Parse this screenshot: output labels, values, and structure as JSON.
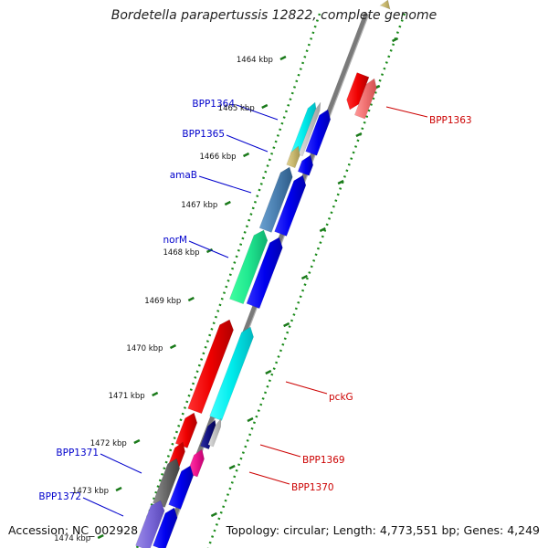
{
  "title": "Bordetella parapertussis 12822, complete genome",
  "footer": {
    "accession": "Accession: NC_002928",
    "summary": "Topology: circular; Length: 4,773,551 bp; Genes: 4,249"
  },
  "kbp_labels": [
    "1464 kbp",
    "1465 kbp",
    "1466 kbp",
    "1467 kbp",
    "1468 kbp",
    "1469 kbp",
    "1470 kbp",
    "1471 kbp",
    "1472 kbp",
    "1473 kbp",
    "1474 kbp"
  ],
  "gene_labels_left": [
    "BPP1364",
    "BPP1365",
    "amaB",
    "norM",
    "BPP1371",
    "BPP1372"
  ],
  "gene_labels_right": [
    "BPP1363",
    "pckG",
    "BPP1369",
    "BPP1370"
  ],
  "colors": {
    "label_left": "#0000cc",
    "label_right": "#cc0000",
    "tick": "#1a7a1a",
    "backbone": "#7a7a7a"
  }
}
